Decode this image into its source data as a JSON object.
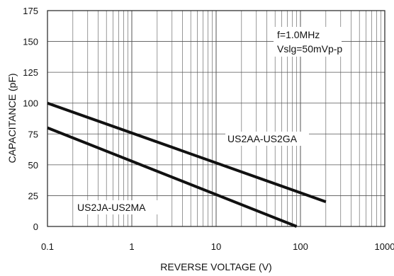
{
  "chart_data": {
    "type": "line",
    "title": "",
    "xlabel": "REVERSE VOLTAGE (V)",
    "ylabel": "CAPACITANCE (pF)",
    "xscale": "log",
    "xlim": [
      0.1,
      1000
    ],
    "ylim": [
      0,
      175
    ],
    "grid": true,
    "x_ticks": [
      0.1,
      1,
      10,
      100,
      1000
    ],
    "x_tick_labels": [
      "0.1",
      "1",
      "10",
      "100",
      "1000"
    ],
    "y_ticks": [
      0,
      25,
      50,
      75,
      100,
      125,
      150,
      175
    ],
    "y_tick_labels": [
      "0",
      "25",
      "50",
      "75",
      "100",
      "125",
      "150",
      "175"
    ],
    "annotation_lines": [
      "f=1.0MHz",
      "Vslg=50mVp-p"
    ],
    "series": [
      {
        "name": "US2AA-US2GA",
        "x": [
          0.1,
          200
        ],
        "y": [
          100,
          20
        ]
      },
      {
        "name": "US2JA-US2MA",
        "x": [
          0.1,
          90
        ],
        "y": [
          80,
          0
        ]
      }
    ],
    "colors": {
      "grid": "#555555",
      "line": "#111111",
      "text": "#111111"
    }
  }
}
